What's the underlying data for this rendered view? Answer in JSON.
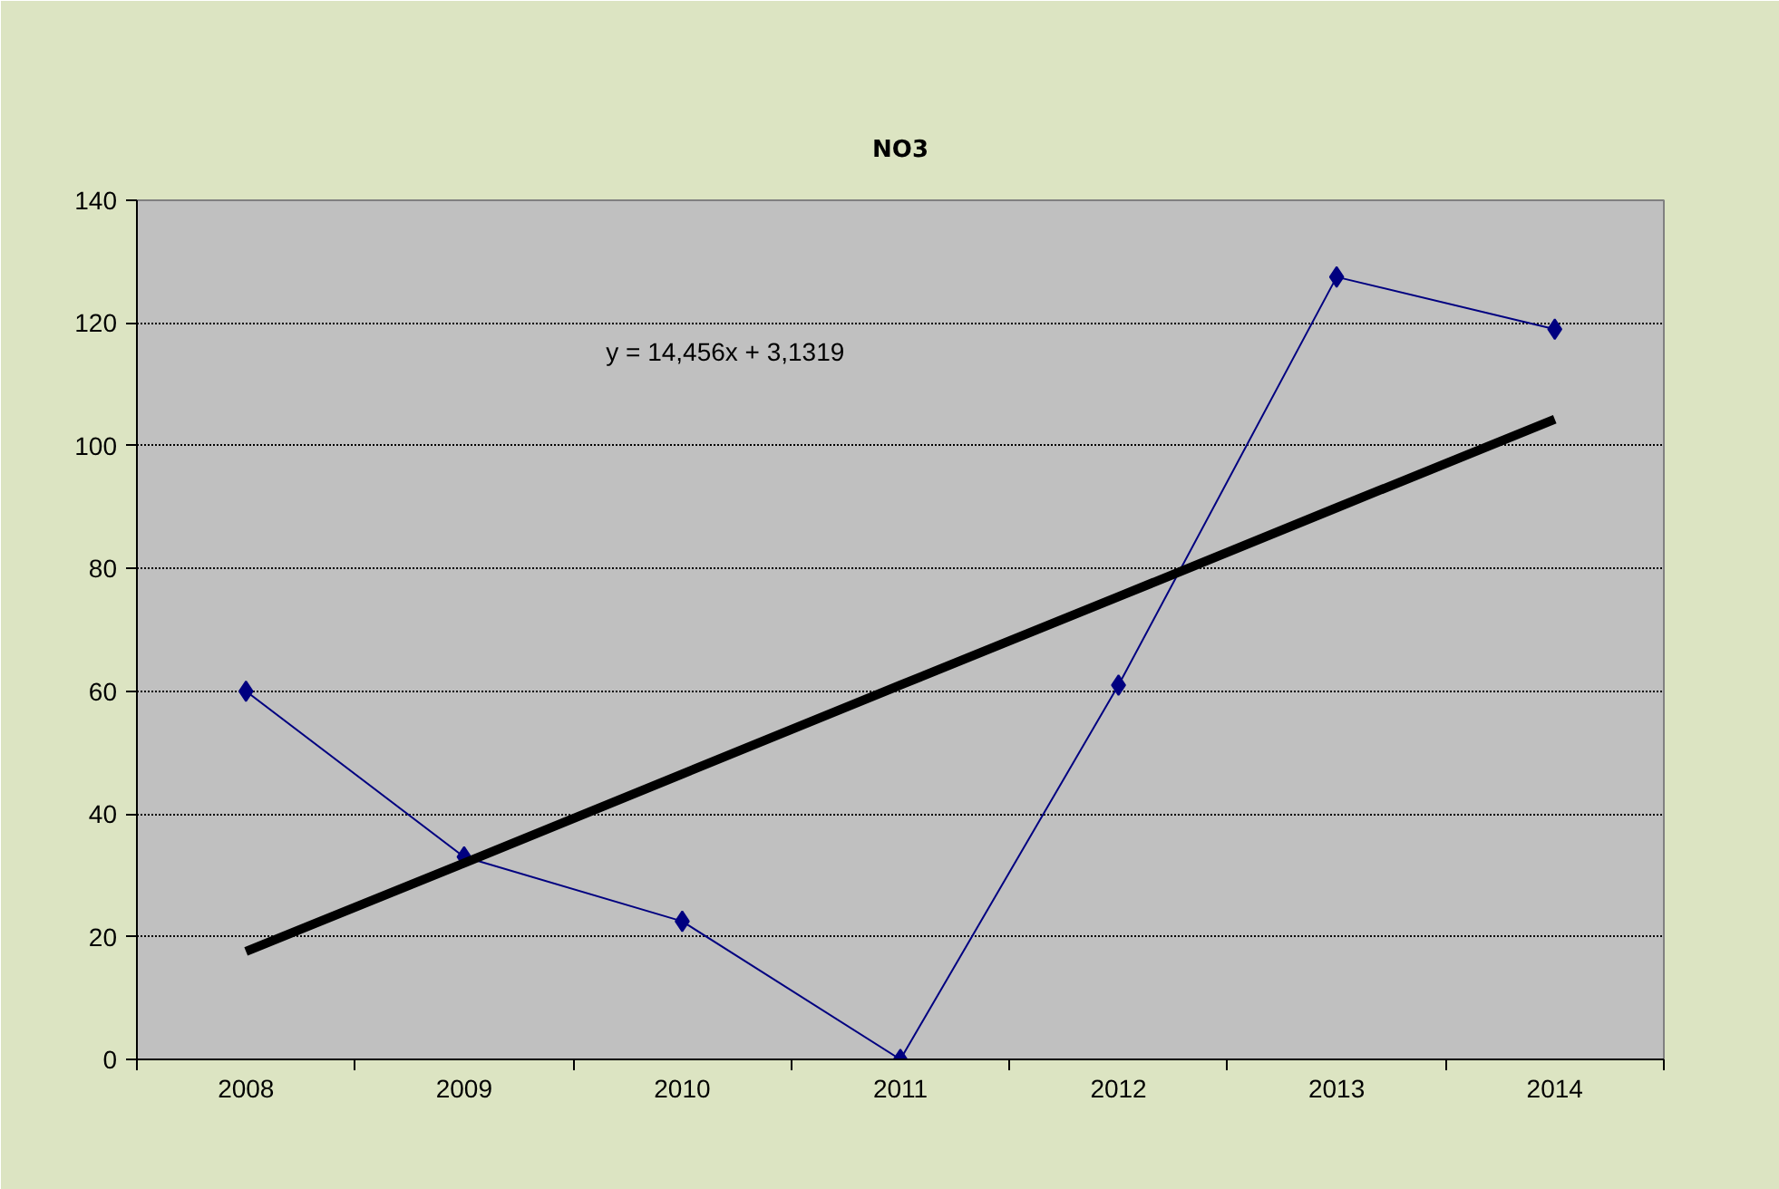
{
  "chart_data": {
    "type": "line",
    "title": "NO3",
    "categories": [
      "2008",
      "2009",
      "2010",
      "2011",
      "2012",
      "2013",
      "2014"
    ],
    "series": [
      {
        "color": "#000080",
        "values": [
          60,
          33,
          22.5,
          0,
          61,
          127.5,
          119
        ],
        "marker": "diamond"
      },
      {
        "type": "line",
        "color": "#000000",
        "values": [
          17.6,
          32.0,
          46.5,
          61.0,
          75.4,
          89.9,
          104.3
        ],
        "marker": "none"
      }
    ],
    "annotations": [
      "y = 14,456x  + 3,1319"
    ],
    "ylim": [
      0,
      140
    ],
    "yticks": [
      0,
      20,
      40,
      60,
      80,
      100,
      120,
      140
    ],
    "grid": "y"
  }
}
